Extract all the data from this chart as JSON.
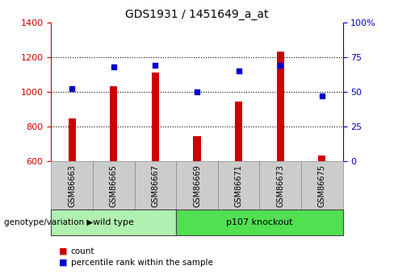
{
  "title": "GDS1931 / 1451649_a_at",
  "samples": [
    "GSM86663",
    "GSM86665",
    "GSM86667",
    "GSM86669",
    "GSM86671",
    "GSM86673",
    "GSM86675"
  ],
  "counts": [
    845,
    1030,
    1110,
    745,
    945,
    1230,
    635
  ],
  "percentiles": [
    52,
    68,
    69,
    50,
    65,
    69,
    47
  ],
  "ylim_left": [
    600,
    1400
  ],
  "ylim_right": [
    0,
    100
  ],
  "left_ticks": [
    600,
    800,
    1000,
    1200,
    1400
  ],
  "right_ticks": [
    0,
    25,
    50,
    75,
    100
  ],
  "right_tick_labels": [
    "0",
    "25",
    "50",
    "75",
    "100%"
  ],
  "bar_color": "#cc0000",
  "dot_color": "#0000cc",
  "bar_width": 0.18,
  "group_label": "genotype/variation",
  "legend_count": "count",
  "legend_percentile": "percentile rank within the sample",
  "wt_color": "#b0f0b0",
  "ko_color": "#50e050",
  "tick_box_color": "#cccccc",
  "wt_label": "wild type",
  "ko_label": "p107 knockout"
}
